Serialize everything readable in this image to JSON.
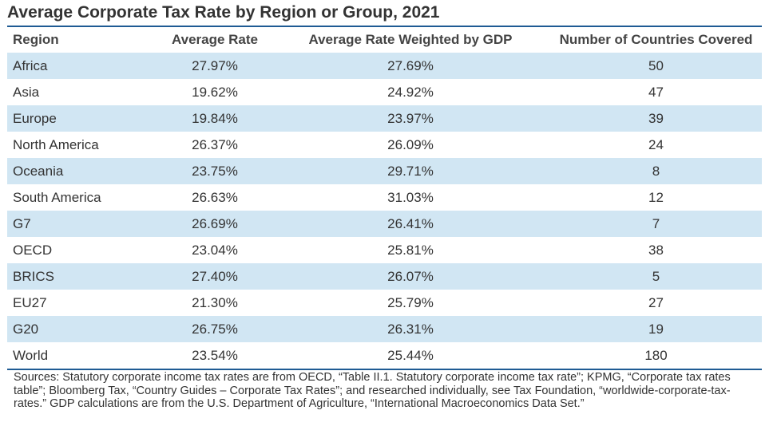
{
  "title": "Average Corporate Tax Rate by Region or Group, 2021",
  "columns": [
    "Region",
    "Average Rate",
    "Average Rate Weighted by GDP",
    "Number of Countries Covered"
  ],
  "rows": [
    {
      "region": "Africa",
      "avg": "27.97%",
      "wavg": "27.69%",
      "count": "50"
    },
    {
      "region": "Asia",
      "avg": "19.62%",
      "wavg": "24.92%",
      "count": "47"
    },
    {
      "region": "Europe",
      "avg": "19.84%",
      "wavg": "23.97%",
      "count": "39"
    },
    {
      "region": "North America",
      "avg": "26.37%",
      "wavg": "26.09%",
      "count": "24"
    },
    {
      "region": "Oceania",
      "avg": "23.75%",
      "wavg": "29.71%",
      "count": "8"
    },
    {
      "region": "South America",
      "avg": "26.63%",
      "wavg": "31.03%",
      "count": "12"
    },
    {
      "region": "G7",
      "avg": "26.69%",
      "wavg": "26.41%",
      "count": "7"
    },
    {
      "region": "OECD",
      "avg": "23.04%",
      "wavg": "25.81%",
      "count": "38"
    },
    {
      "region": "BRICS",
      "avg": "27.40%",
      "wavg": "26.07%",
      "count": "5"
    },
    {
      "region": "EU27",
      "avg": "21.30%",
      "wavg": "25.79%",
      "count": "27"
    },
    {
      "region": "G20",
      "avg": "26.75%",
      "wavg": "26.31%",
      "count": "19"
    },
    {
      "region": "World",
      "avg": "23.54%",
      "wavg": "25.44%",
      "count": "180"
    }
  ],
  "sources": "Sources: Statutory corporate income tax rates are from OECD, “Table II.1. Statutory corporate income tax rate”; KPMG, “Corporate tax rates table”; Bloomberg Tax, “Country Guides – Corporate Tax Rates”; and researched individually, see Tax Foundation, “worldwide-corporate-tax-rates.” GDP calculations are from the U.S. Department of Agriculture, “International Macroeconomics Data Set.”",
  "colors": {
    "shaded_row": "#d1e6f3",
    "rule": "#1f5b94",
    "text": "#333333"
  }
}
